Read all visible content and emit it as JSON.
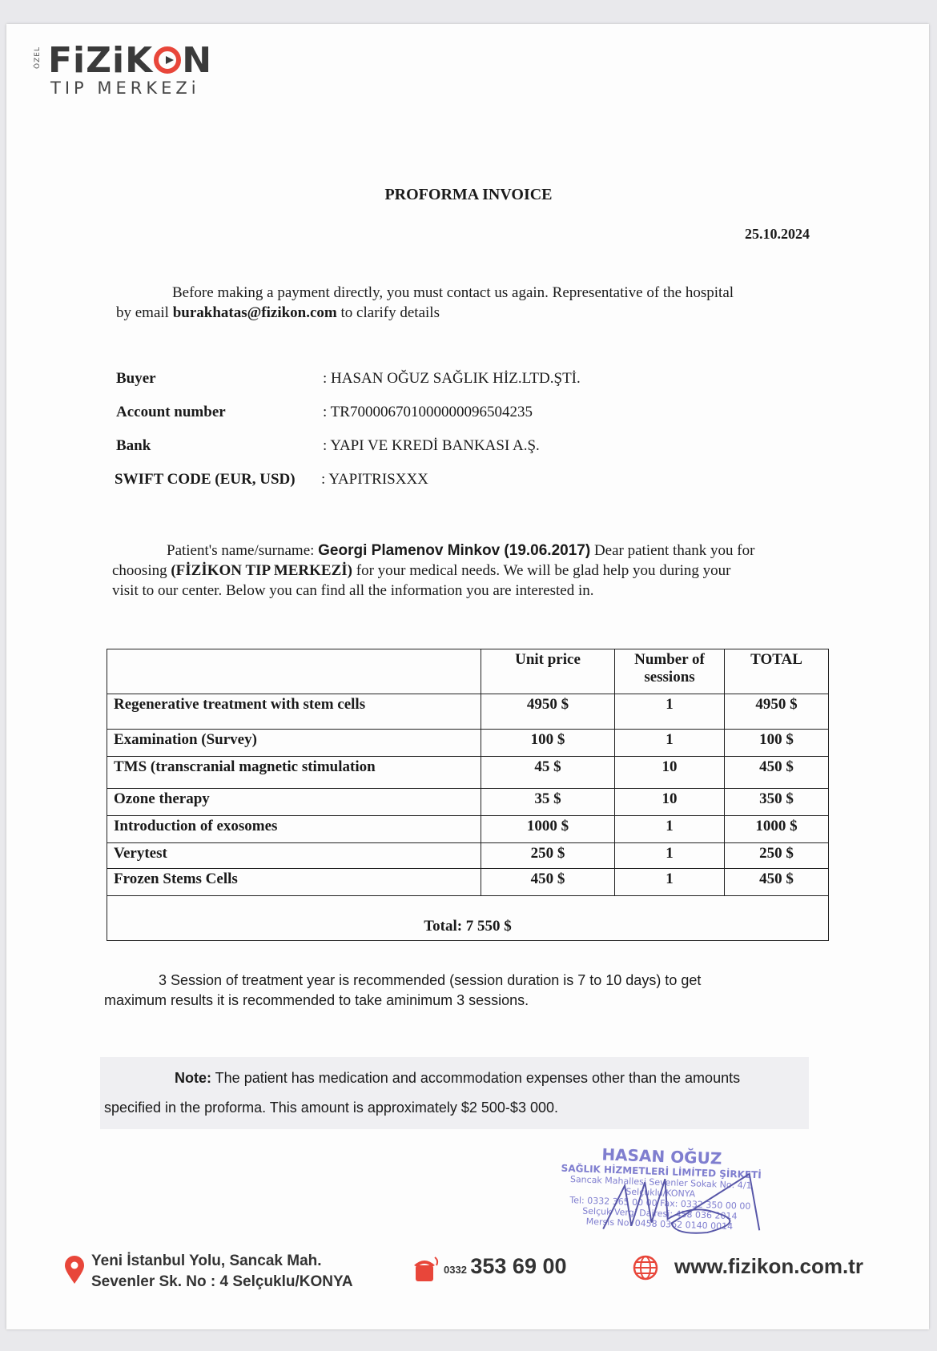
{
  "logo": {
    "ozel": "ÖZEL",
    "brand_pre": "FiZiK",
    "brand_post": "N",
    "subtitle": "TIP MERKEZi"
  },
  "document": {
    "title": "PROFORMA INVOICE",
    "date": "25.10.2024"
  },
  "intro": {
    "text1": "Before making a payment directly, you must contact us again. Representative of the hospital",
    "text2_pre": "by email ",
    "email": "burakhatas@fizikon.com",
    "text2_post": " to clarify details"
  },
  "info": [
    {
      "label": "Buyer",
      "value": ": HASAN OĞUZ SAĞLIK HİZ.LTD.ŞTİ."
    },
    {
      "label": "Account number",
      "value": ": TR700006701000000096504235"
    },
    {
      "label": "Bank",
      "value": ": YAPI VE KREDİ BANKASI A.Ş."
    },
    {
      "label": "SWIFT CODE (EUR, USD)",
      "value": ": YAPITRISXXX"
    }
  ],
  "patient": {
    "label": "Patient's name/surname: ",
    "name": "Georgi Plamenov Minkov (19.06.2017)",
    "text1": " Dear patient thank you for",
    "text2_pre": "choosing ",
    "clinic": "(FİZİKON TIP MERKEZİ)",
    "text2_post": " for your medical needs. We will be glad help you during your",
    "text3": "visit to our center. Below you can find all the information you are interested in."
  },
  "table": {
    "headers": [
      "",
      "Unit price",
      "Number of sessions",
      "TOTAL"
    ],
    "rows": [
      [
        "Regenerative treatment with stem cells",
        "4950 $",
        "1",
        "4950 $"
      ],
      [
        "Examination (Survey)",
        "100 $",
        "1",
        "100 $"
      ],
      [
        "TMS (transcranial magnetic stimulation",
        "45 $",
        "10",
        "450 $"
      ],
      [
        "Ozone therapy",
        "35 $",
        "10",
        "350 $"
      ],
      [
        "Introduction of exosomes",
        "1000 $",
        "1",
        "1000 $"
      ],
      [
        "Verytest",
        "250 $",
        "1",
        "250 $"
      ],
      [
        "Frozen Stems Cells",
        "450 $",
        "1",
        "450 $"
      ]
    ],
    "total": "Total: 7 550 $"
  },
  "recommendation": {
    "line1": "3 Session of treatment year is recommended (session duration is 7 to 10 days) to get",
    "line2": "maximum results it is recommended to take aminimum 3 sessions."
  },
  "note": {
    "label": "Note:",
    "line1": " The patient has medication and accommodation expenses other than the amounts",
    "line2": "specified in the proforma. This amount is approximately $2 500-$3 000."
  },
  "stamp": {
    "l1": "HASAN OĞUZ",
    "l2": "SAĞLIK HİZMETLERİ LİMİTED ŞİRKETİ",
    "l3": "Sancak Mahallesi Sevenler Sokak No: 4/1",
    "l4": "Selçuklu/KONYA",
    "l5": "Tel: 0332 365 00 00 Fax: 0332 350 00 00",
    "l6": "Selçuk Vergi Dairesi: 458 036 2014",
    "l7": "Mersis No: 0458 0362 0140 0014"
  },
  "footer": {
    "address1": "Yeni İstanbul Yolu,  Sancak Mah.",
    "address2": "Sevenler Sk. No : 4 Selçuklu/KONYA",
    "phone_prefix": "0332",
    "phone": "353 69 00",
    "website": "www.fizikon.com.tr"
  },
  "colors": {
    "brand_red": "#e8463a",
    "stamp": "#6a68c8"
  }
}
